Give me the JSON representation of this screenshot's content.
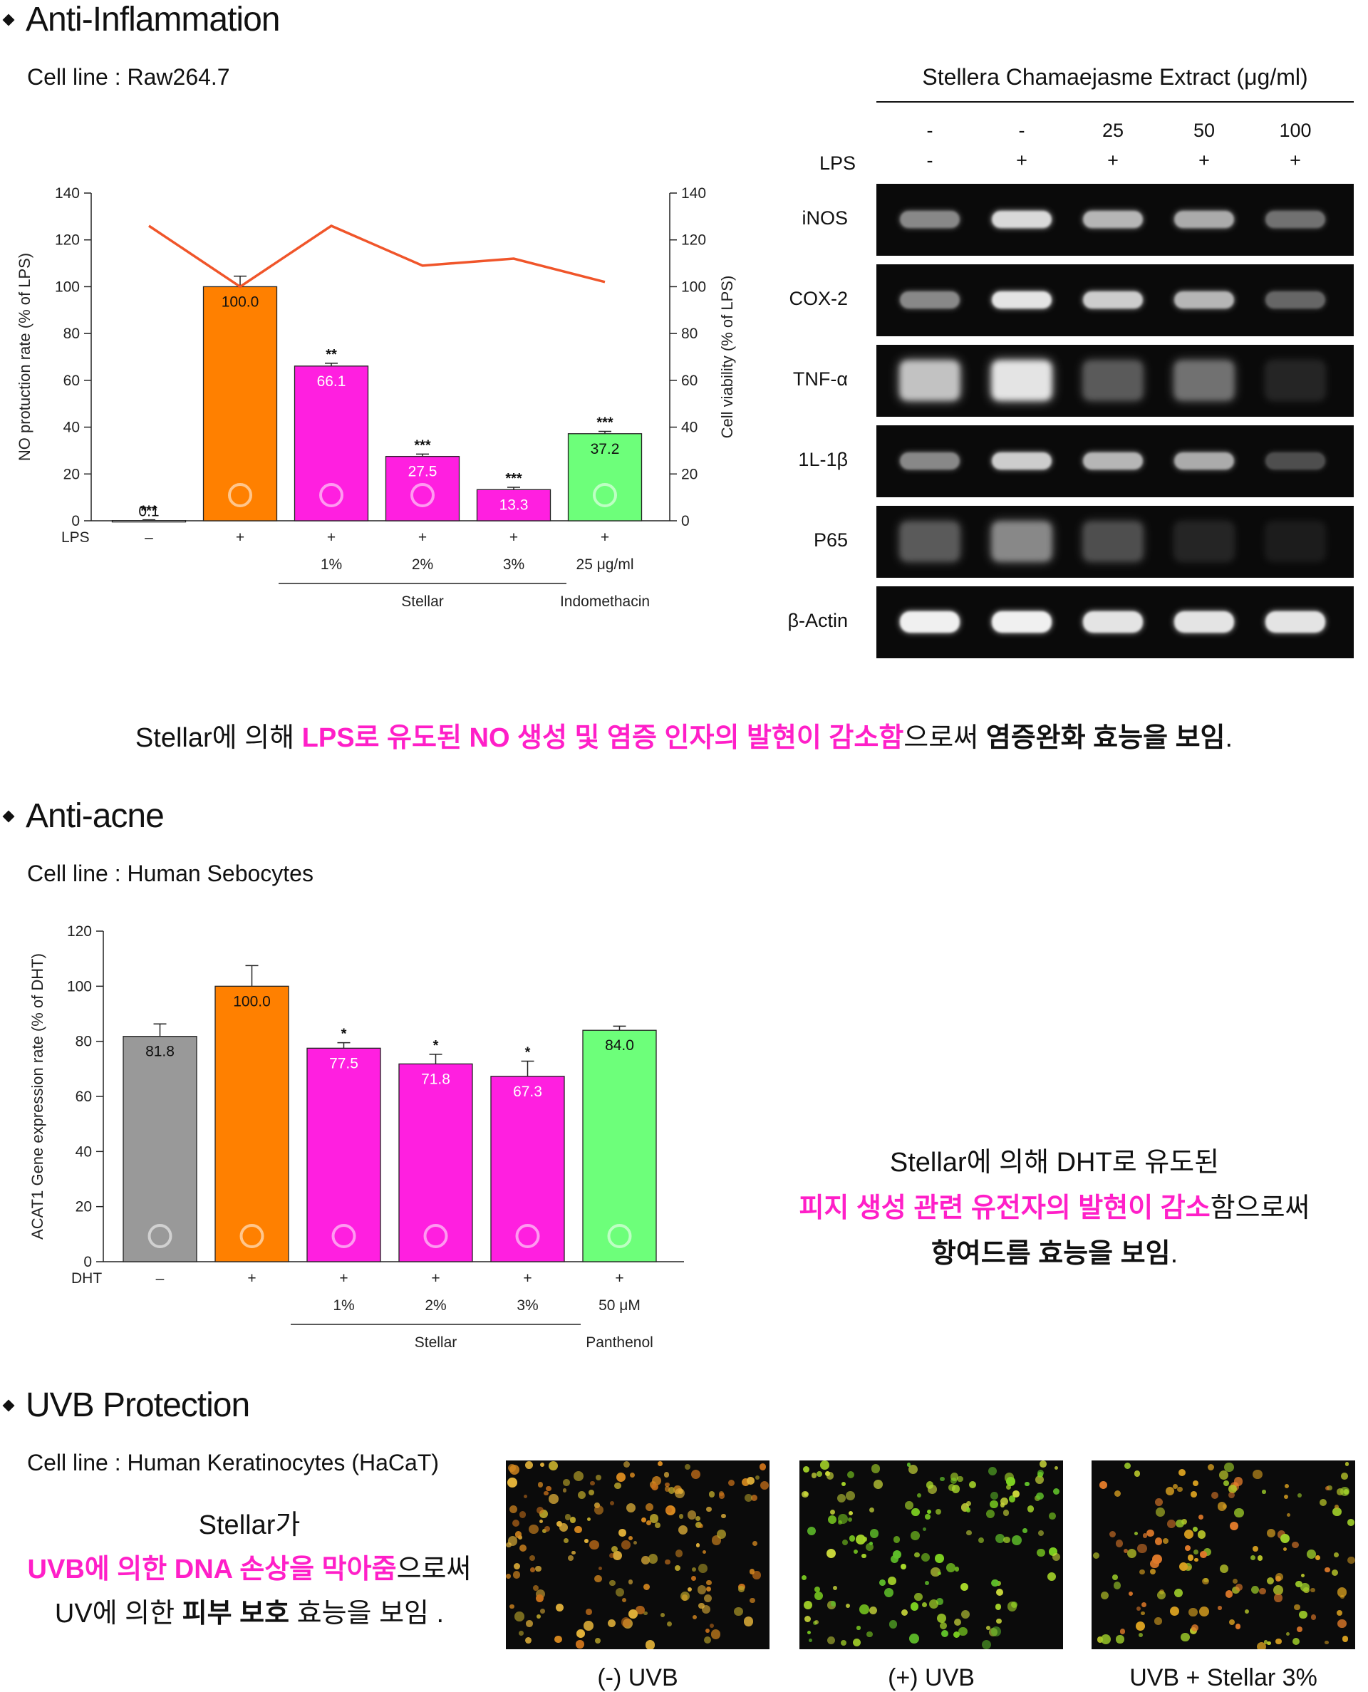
{
  "sections": {
    "anti_inflammation": {
      "title": "Anti-Inflammation",
      "cell_line": "Cell line : Raw264.7",
      "statement": {
        "part1": "Stellar에 의해 ",
        "highlight": "LPS로 유도된 NO 생성 및 염증 인자의 발현이 감소함",
        "part2": "으로써 ",
        "bold": "염증완화 효능을 보임",
        "end": "."
      }
    },
    "anti_acne": {
      "title": "Anti-acne",
      "cell_line": "Cell line : Human Sebocytes",
      "statement": {
        "line1": "Stellar에 의해 DHT로 유도된",
        "line2_highlight": "피지 생성 관련 유전자의 발현이 감소",
        "line2_rest": "함으로써",
        "line3_bold": "항여드름 효능을 보임",
        "line3_end": "."
      }
    },
    "uvb": {
      "title": "UVB Protection",
      "cell_line": "Cell line : Human Keratinocytes (HaCaT)",
      "statement": {
        "line1": "Stellar가",
        "line2_highlight": "UVB에 의한 DNA 손상을 막아줌",
        "line2_rest": "으로써",
        "line3_a": "UV에 의한 ",
        "line3_bold": "피부 보호",
        "line3_b": " 효능을 보임 ."
      },
      "images": [
        {
          "caption": "(-) UVB"
        },
        {
          "caption": "(+) UVB"
        },
        {
          "caption": "UVB + Stellar 3%"
        }
      ]
    }
  },
  "chart_data": [
    {
      "type": "bar",
      "ylabel": "NO protuction rate (% of LPS)",
      "y2label": "Cell viability (% of LPS)",
      "ylim": [
        0,
        140
      ],
      "yticks": [
        0,
        20,
        40,
        60,
        80,
        100,
        120,
        140
      ],
      "row_label": "LPS",
      "categories": [
        "–",
        "+",
        "+",
        "+",
        "+",
        "+"
      ],
      "dose_labels": [
        "",
        "",
        "1%",
        "2%",
        "3%",
        "25 μg/ml"
      ],
      "group_labels": [
        {
          "label": "Stellar",
          "from": 2,
          "to": 4
        },
        {
          "label": "Indomethacin",
          "from": 5,
          "to": 5
        }
      ],
      "values": [
        0.1,
        100.0,
        66.1,
        27.5,
        13.3,
        37.2
      ],
      "value_labels": [
        "0.1",
        "100.0",
        "66.1",
        "27.5",
        "13.3",
        "37.2"
      ],
      "errors": [
        0.3,
        4.5,
        1.2,
        1.0,
        1.0,
        1.0
      ],
      "significance": [
        "***",
        "",
        "**",
        "***",
        "***",
        "***"
      ],
      "colors": [
        "#ffffff",
        "#ff8000",
        "#ff1fe0",
        "#ff1fe0",
        "#ff1fe0",
        "#6dff7a"
      ],
      "line_series": {
        "values": [
          126,
          100,
          126,
          109,
          112,
          102
        ],
        "color": "#f0552a"
      }
    },
    {
      "type": "bar",
      "ylabel": "ACAT1 Gene expression rate (% of DHT)",
      "ylim": [
        0,
        120
      ],
      "yticks": [
        0,
        20,
        40,
        60,
        80,
        100,
        120
      ],
      "row_label": "DHT",
      "categories": [
        "–",
        "+",
        "+",
        "+",
        "+",
        "+"
      ],
      "dose_labels": [
        "",
        "",
        "1%",
        "2%",
        "3%",
        "50 μM"
      ],
      "group_labels": [
        {
          "label": "Stellar",
          "from": 2,
          "to": 4
        },
        {
          "label": "Panthenol",
          "from": 5,
          "to": 5
        }
      ],
      "values": [
        81.8,
        100.0,
        77.5,
        71.8,
        67.3,
        84.0
      ],
      "value_labels": [
        "81.8",
        "100.0",
        "77.5",
        "71.8",
        "67.3",
        "84.0"
      ],
      "errors": [
        4.5,
        7.5,
        2.0,
        3.5,
        5.5,
        1.5
      ],
      "significance": [
        "",
        "",
        "*",
        "*",
        "*",
        ""
      ],
      "colors": [
        "#999999",
        "#ff8000",
        "#ff1fe0",
        "#ff1fe0",
        "#ff1fe0",
        "#6dff7a"
      ]
    },
    {
      "type": "table",
      "title": "Stellera Chamaejasme Extract (μg/ml)",
      "row_label": "LPS",
      "concentrations": [
        "-",
        "-",
        "25",
        "50",
        "100"
      ],
      "lps": [
        "-",
        "+",
        "+",
        "+",
        "+"
      ],
      "rows": [
        {
          "label": "iNOS",
          "intensity": [
            0.55,
            0.9,
            0.75,
            0.7,
            0.45
          ]
        },
        {
          "label": "COX-2",
          "intensity": [
            0.55,
            0.95,
            0.85,
            0.75,
            0.4
          ]
        },
        {
          "label": "TNF-α",
          "intensity": [
            0.8,
            0.95,
            0.35,
            0.45,
            0.12
          ]
        },
        {
          "label": "1L-1β",
          "intensity": [
            0.55,
            0.85,
            0.75,
            0.7,
            0.3
          ]
        },
        {
          "label": "P65",
          "intensity": [
            0.35,
            0.55,
            0.3,
            0.12,
            0.08
          ]
        },
        {
          "label": "β-Actin",
          "intensity": [
            1.0,
            1.0,
            0.95,
            0.95,
            0.95
          ]
        }
      ]
    }
  ]
}
